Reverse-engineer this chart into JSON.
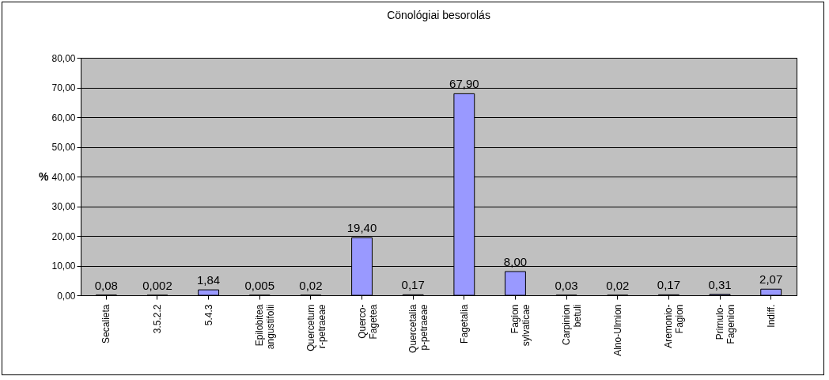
{
  "chart_data": {
    "type": "bar",
    "title": "Cönológiai besorolás",
    "ylabel": "%",
    "categories": [
      "Secalieta",
      "3.5.2.2",
      "5.4.3",
      "Epilobitea\nangustifolii",
      "Quercetum\nr-petraeae",
      "Querco-\nFagetea",
      "Quercetalia\np-petraeae",
      "Fagetalia",
      "Fagion\nsylvaticae",
      "Carpinion\nbetuli",
      "Alno-Ulmion",
      "Aremonio-\nFagion",
      "Primulo-\nFagenion",
      "Indiff."
    ],
    "values": [
      0.08,
      0.002,
      1.84,
      0.005,
      0.02,
      19.4,
      0.17,
      67.9,
      8.0,
      0.03,
      0.02,
      0.17,
      0.31,
      2.07
    ],
    "value_labels": [
      "0,08",
      "0,002",
      "1,84",
      "0,005",
      "0,02",
      "19,40",
      "0,17",
      "67,90",
      "8,00",
      "0,03",
      "0,02",
      "0,17",
      "0,31",
      "2,07"
    ],
    "color": "#9999ff",
    "ylim": [
      0,
      80
    ],
    "yticks": [
      {
        "value": 0,
        "label": "0,00"
      },
      {
        "value": 10,
        "label": "10,00"
      },
      {
        "value": 20,
        "label": "20,00"
      },
      {
        "value": 30,
        "label": "30,00"
      },
      {
        "value": 40,
        "label": "40,00"
      },
      {
        "value": 50,
        "label": "50,00"
      },
      {
        "value": 60,
        "label": "60,00"
      },
      {
        "value": 70,
        "label": "70,00"
      },
      {
        "value": 80,
        "label": "80,00"
      }
    ],
    "grid": true
  }
}
